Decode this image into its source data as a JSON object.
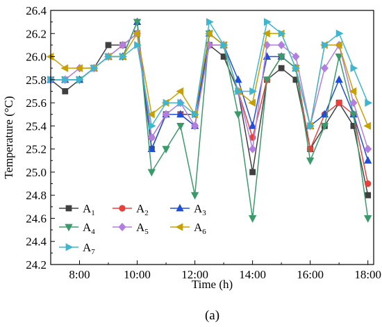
{
  "chart_data": {
    "type": "line",
    "xlabel": "Time (h)",
    "ylabel": "Temperature (°C)",
    "caption": "(a)",
    "xlim": [
      7.0,
      18.2
    ],
    "ylim": [
      24.2,
      26.4
    ],
    "y_ticks": [
      "24.2",
      "24.4",
      "24.6",
      "24.8",
      "25.0",
      "25.2",
      "25.4",
      "25.6",
      "25.8",
      "26.0",
      "26.2",
      "26.4"
    ],
    "x_ticks": [
      "8:00",
      "10:00",
      "12:00",
      "14:00",
      "16:00",
      "18:00"
    ],
    "x": [
      7.0,
      7.5,
      8.0,
      8.5,
      9.0,
      9.5,
      10.0,
      10.5,
      11.0,
      11.5,
      12.0,
      12.5,
      13.0,
      13.5,
      14.0,
      14.5,
      15.0,
      15.5,
      16.0,
      16.5,
      17.0,
      17.5,
      18.0
    ],
    "legend_position": "bottom-left",
    "series": [
      {
        "name": "A",
        "sub": "1",
        "color": "#404040",
        "marker": "square",
        "values": [
          25.8,
          25.7,
          25.8,
          25.9,
          26.1,
          26.1,
          26.2,
          25.2,
          25.5,
          25.5,
          25.5,
          26.1,
          26.0,
          25.7,
          25.0,
          25.8,
          25.9,
          25.8,
          25.2,
          25.4,
          25.6,
          25.4,
          24.8
        ]
      },
      {
        "name": "A",
        "sub": "2",
        "color": "#e8413c",
        "marker": "circle",
        "values": [
          25.8,
          25.8,
          25.8,
          25.9,
          26.0,
          26.1,
          26.2,
          25.3,
          25.5,
          25.5,
          25.4,
          26.1,
          26.1,
          25.7,
          25.3,
          25.8,
          26.0,
          25.9,
          25.2,
          25.5,
          25.6,
          25.5,
          24.9
        ]
      },
      {
        "name": "A",
        "sub": "3",
        "color": "#1f4fd8",
        "marker": "triangle-up",
        "values": [
          25.8,
          25.8,
          25.8,
          25.9,
          26.0,
          26.0,
          26.3,
          25.2,
          25.5,
          25.5,
          25.4,
          26.2,
          26.1,
          25.8,
          25.4,
          26.0,
          26.0,
          25.9,
          25.4,
          25.5,
          25.8,
          25.5,
          25.1
        ]
      },
      {
        "name": "A",
        "sub": "4",
        "color": "#3a9a6a",
        "marker": "triangle-down",
        "values": [
          25.8,
          25.8,
          25.8,
          25.9,
          26.0,
          26.0,
          26.3,
          25.0,
          25.2,
          25.4,
          24.8,
          26.2,
          26.1,
          25.5,
          24.6,
          25.8,
          26.0,
          25.9,
          25.1,
          25.4,
          26.0,
          25.5,
          24.6
        ]
      },
      {
        "name": "A",
        "sub": "5",
        "color": "#b07fe0",
        "marker": "diamond",
        "values": [
          25.8,
          25.8,
          25.9,
          25.9,
          26.0,
          26.1,
          26.2,
          25.3,
          25.5,
          25.6,
          25.4,
          26.1,
          26.1,
          25.7,
          25.2,
          26.1,
          26.1,
          26.0,
          25.4,
          25.9,
          26.1,
          25.6,
          25.2
        ]
      },
      {
        "name": "A",
        "sub": "6",
        "color": "#c8a000",
        "marker": "triangle-left",
        "values": [
          26.0,
          25.9,
          25.9,
          25.9,
          26.0,
          26.0,
          26.2,
          25.5,
          25.6,
          25.7,
          25.5,
          26.2,
          26.1,
          25.7,
          25.6,
          26.2,
          26.2,
          25.9,
          25.4,
          26.1,
          26.1,
          25.7,
          25.4
        ]
      },
      {
        "name": "A",
        "sub": "7",
        "color": "#3fb6cf",
        "marker": "triangle-right",
        "values": [
          25.8,
          25.8,
          25.8,
          25.9,
          26.0,
          26.0,
          26.1,
          25.4,
          25.6,
          25.6,
          25.5,
          26.3,
          26.1,
          25.7,
          25.7,
          26.3,
          26.2,
          25.9,
          25.4,
          26.1,
          26.2,
          25.9,
          25.6
        ]
      }
    ]
  }
}
